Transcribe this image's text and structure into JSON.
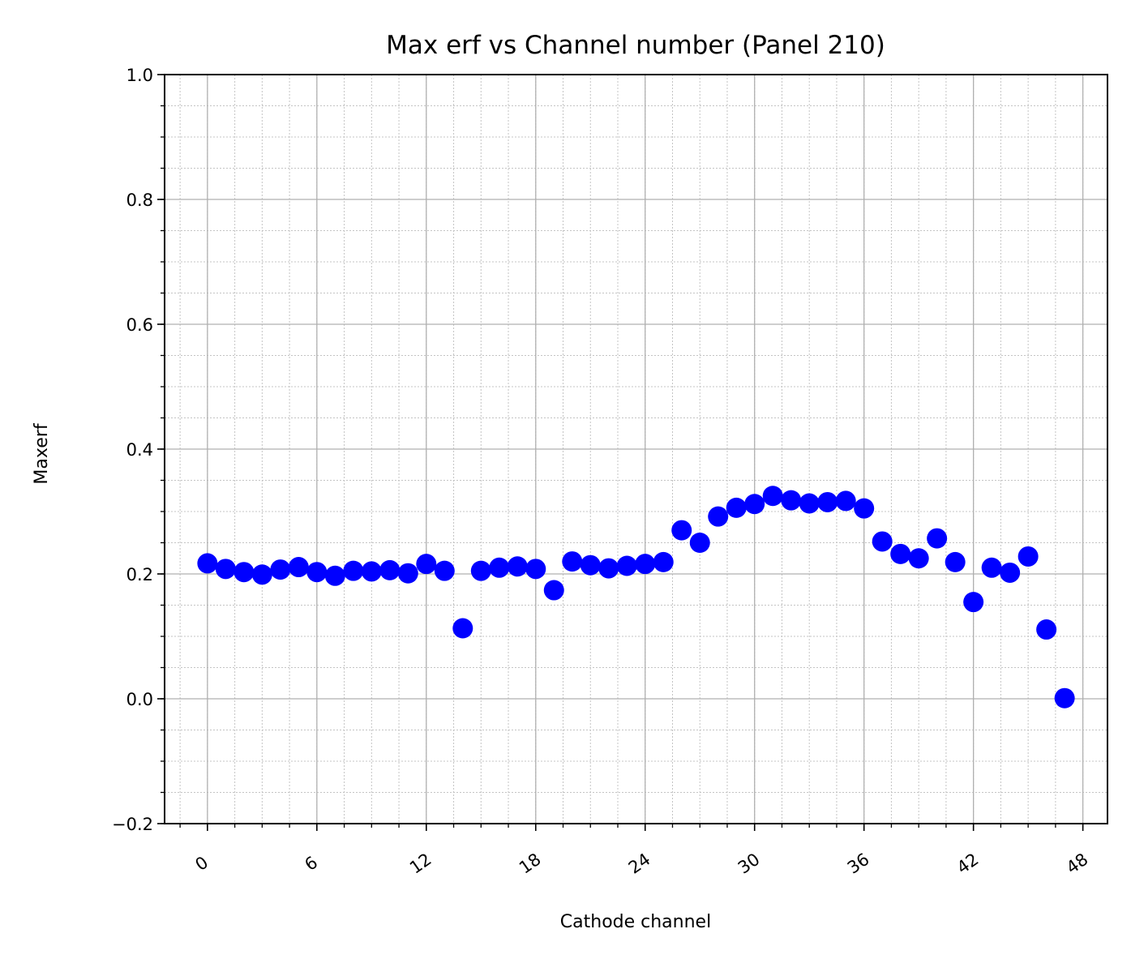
{
  "chart_data": {
    "type": "scatter",
    "title": "Max erf vs Channel number (Panel 210)",
    "xlabel": "Cathode channel",
    "ylabel": "Maxerf",
    "xlim": [
      -2.35,
      49.35
    ],
    "ylim": [
      -0.2,
      1.0
    ],
    "x_ticks": [
      0,
      6,
      12,
      18,
      24,
      30,
      36,
      42,
      48
    ],
    "y_ticks": [
      -0.2,
      0.0,
      0.2,
      0.4,
      0.6,
      0.8,
      1.0
    ],
    "y_tick_labels": [
      "−0.2",
      "0.0",
      "0.2",
      "0.4",
      "0.6",
      "0.8",
      "1.0"
    ],
    "grid": true,
    "minor_grid": true,
    "marker_color": "#0000ff",
    "x": [
      0,
      1,
      2,
      3,
      4,
      5,
      6,
      7,
      8,
      9,
      10,
      11,
      12,
      13,
      14,
      15,
      16,
      17,
      18,
      19,
      20,
      21,
      22,
      23,
      24,
      25,
      26,
      27,
      28,
      29,
      30,
      31,
      32,
      33,
      34,
      35,
      36,
      37,
      38,
      39,
      40,
      41,
      42,
      43,
      44,
      45,
      46,
      47
    ],
    "y": [
      0.217,
      0.208,
      0.203,
      0.199,
      0.207,
      0.211,
      0.203,
      0.197,
      0.205,
      0.204,
      0.206,
      0.201,
      0.216,
      0.205,
      0.113,
      0.205,
      0.21,
      0.212,
      0.208,
      0.174,
      0.22,
      0.214,
      0.209,
      0.213,
      0.216,
      0.219,
      0.27,
      0.25,
      0.292,
      0.306,
      0.312,
      0.325,
      0.318,
      0.313,
      0.315,
      0.317,
      0.305,
      0.252,
      0.232,
      0.225,
      0.257,
      0.219,
      0.155,
      0.21,
      0.202,
      0.228,
      0.111,
      0.001
    ]
  }
}
